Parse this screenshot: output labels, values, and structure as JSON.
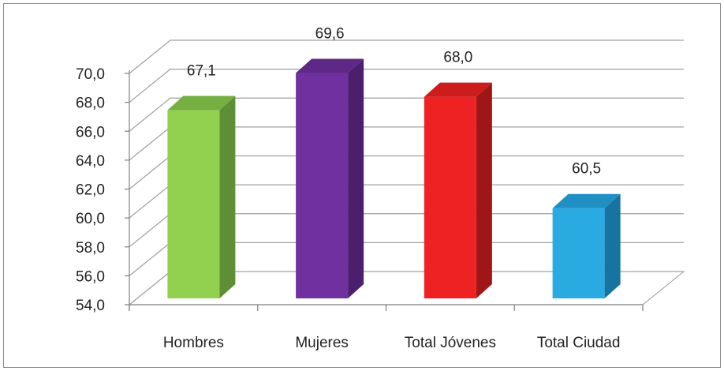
{
  "chart_data": {
    "type": "bar",
    "categories": [
      "Hombres",
      "Mujeres",
      "Total Jóvenes",
      "Total Ciudad"
    ],
    "values": [
      67.1,
      69.6,
      68.0,
      60.5
    ],
    "value_labels": [
      "67,1",
      "69,6",
      "68,0",
      "60,5"
    ],
    "title": "",
    "xlabel": "",
    "ylabel": "",
    "ylim": [
      54.0,
      70.0
    ],
    "y_ticks": [
      54.0,
      56.0,
      58.0,
      60.0,
      62.0,
      64.0,
      66.0,
      68.0,
      70.0
    ],
    "y_tick_labels": [
      "54,0",
      "56,0",
      "58,0",
      "60,0",
      "62,0",
      "64,0",
      "66,0",
      "68,0",
      "70,0"
    ],
    "grid": true,
    "legend": "none",
    "style": "3d-column",
    "colors": [
      {
        "front": "#92D050",
        "side": "#5E8E36",
        "top": "#76B043"
      },
      {
        "front": "#7030A0",
        "side": "#4B1F6E",
        "top": "#5E2887"
      },
      {
        "front": "#EE2222",
        "side": "#A01616",
        "top": "#CC1C1C"
      },
      {
        "front": "#29ABE2",
        "side": "#1774A0",
        "top": "#1F8FC4"
      }
    ]
  }
}
